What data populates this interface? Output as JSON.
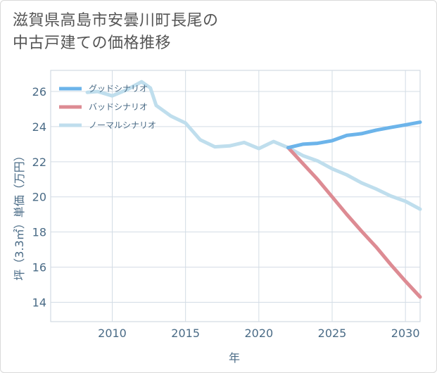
{
  "title": {
    "line1": "滋賀県高島市安曇川町長尾の",
    "line2": "中古戸建ての価格推移"
  },
  "chart_data": {
    "type": "line",
    "xlabel": "年",
    "ylabel": "坪（3.3㎡）単価（万円）",
    "xlim": [
      2005.8,
      2031
    ],
    "ylim": [
      12.9,
      27.2
    ],
    "x_ticks": [
      2010,
      2015,
      2020,
      2025,
      2030
    ],
    "y_ticks": [
      14,
      16,
      18,
      20,
      22,
      24,
      26
    ],
    "grid": true,
    "legend_position": "top-left",
    "series": [
      {
        "name": "グッドシナリオ",
        "color": "#6cb4ea",
        "points": [
          [
            2022,
            22.8
          ],
          [
            2023,
            23.0
          ],
          [
            2024,
            23.05
          ],
          [
            2025,
            23.2
          ],
          [
            2026,
            23.5
          ],
          [
            2027,
            23.6
          ],
          [
            2028,
            23.8
          ],
          [
            2029,
            23.95
          ],
          [
            2030,
            24.1
          ],
          [
            2031,
            24.25
          ]
        ]
      },
      {
        "name": "バッドシナリオ",
        "color": "#dd8b93",
        "points": [
          [
            2022,
            22.8
          ],
          [
            2023,
            21.9
          ],
          [
            2024,
            21.0
          ],
          [
            2025,
            20.0
          ],
          [
            2026,
            19.0
          ],
          [
            2027,
            18.05
          ],
          [
            2028,
            17.15
          ],
          [
            2029,
            16.15
          ],
          [
            2030,
            15.2
          ],
          [
            2031,
            14.3
          ]
        ]
      },
      {
        "name": "ノーマルシナリオ",
        "color": "#bfdeed",
        "points": [
          [
            2008.3,
            25.95
          ],
          [
            2009,
            26.0
          ],
          [
            2010,
            25.75
          ],
          [
            2011,
            26.1
          ],
          [
            2012,
            26.55
          ],
          [
            2012.6,
            26.2
          ],
          [
            2013,
            25.2
          ],
          [
            2014,
            24.6
          ],
          [
            2015,
            24.2
          ],
          [
            2016,
            23.25
          ],
          [
            2017,
            22.85
          ],
          [
            2018,
            22.9
          ],
          [
            2019,
            23.1
          ],
          [
            2020,
            22.75
          ],
          [
            2021,
            23.15
          ],
          [
            2022,
            22.8
          ],
          [
            2023,
            22.35
          ],
          [
            2024,
            22.05
          ],
          [
            2025,
            21.6
          ],
          [
            2026,
            21.25
          ],
          [
            2027,
            20.8
          ],
          [
            2028,
            20.45
          ],
          [
            2029,
            20.05
          ],
          [
            2030,
            19.75
          ],
          [
            2031,
            19.3
          ]
        ]
      }
    ]
  }
}
